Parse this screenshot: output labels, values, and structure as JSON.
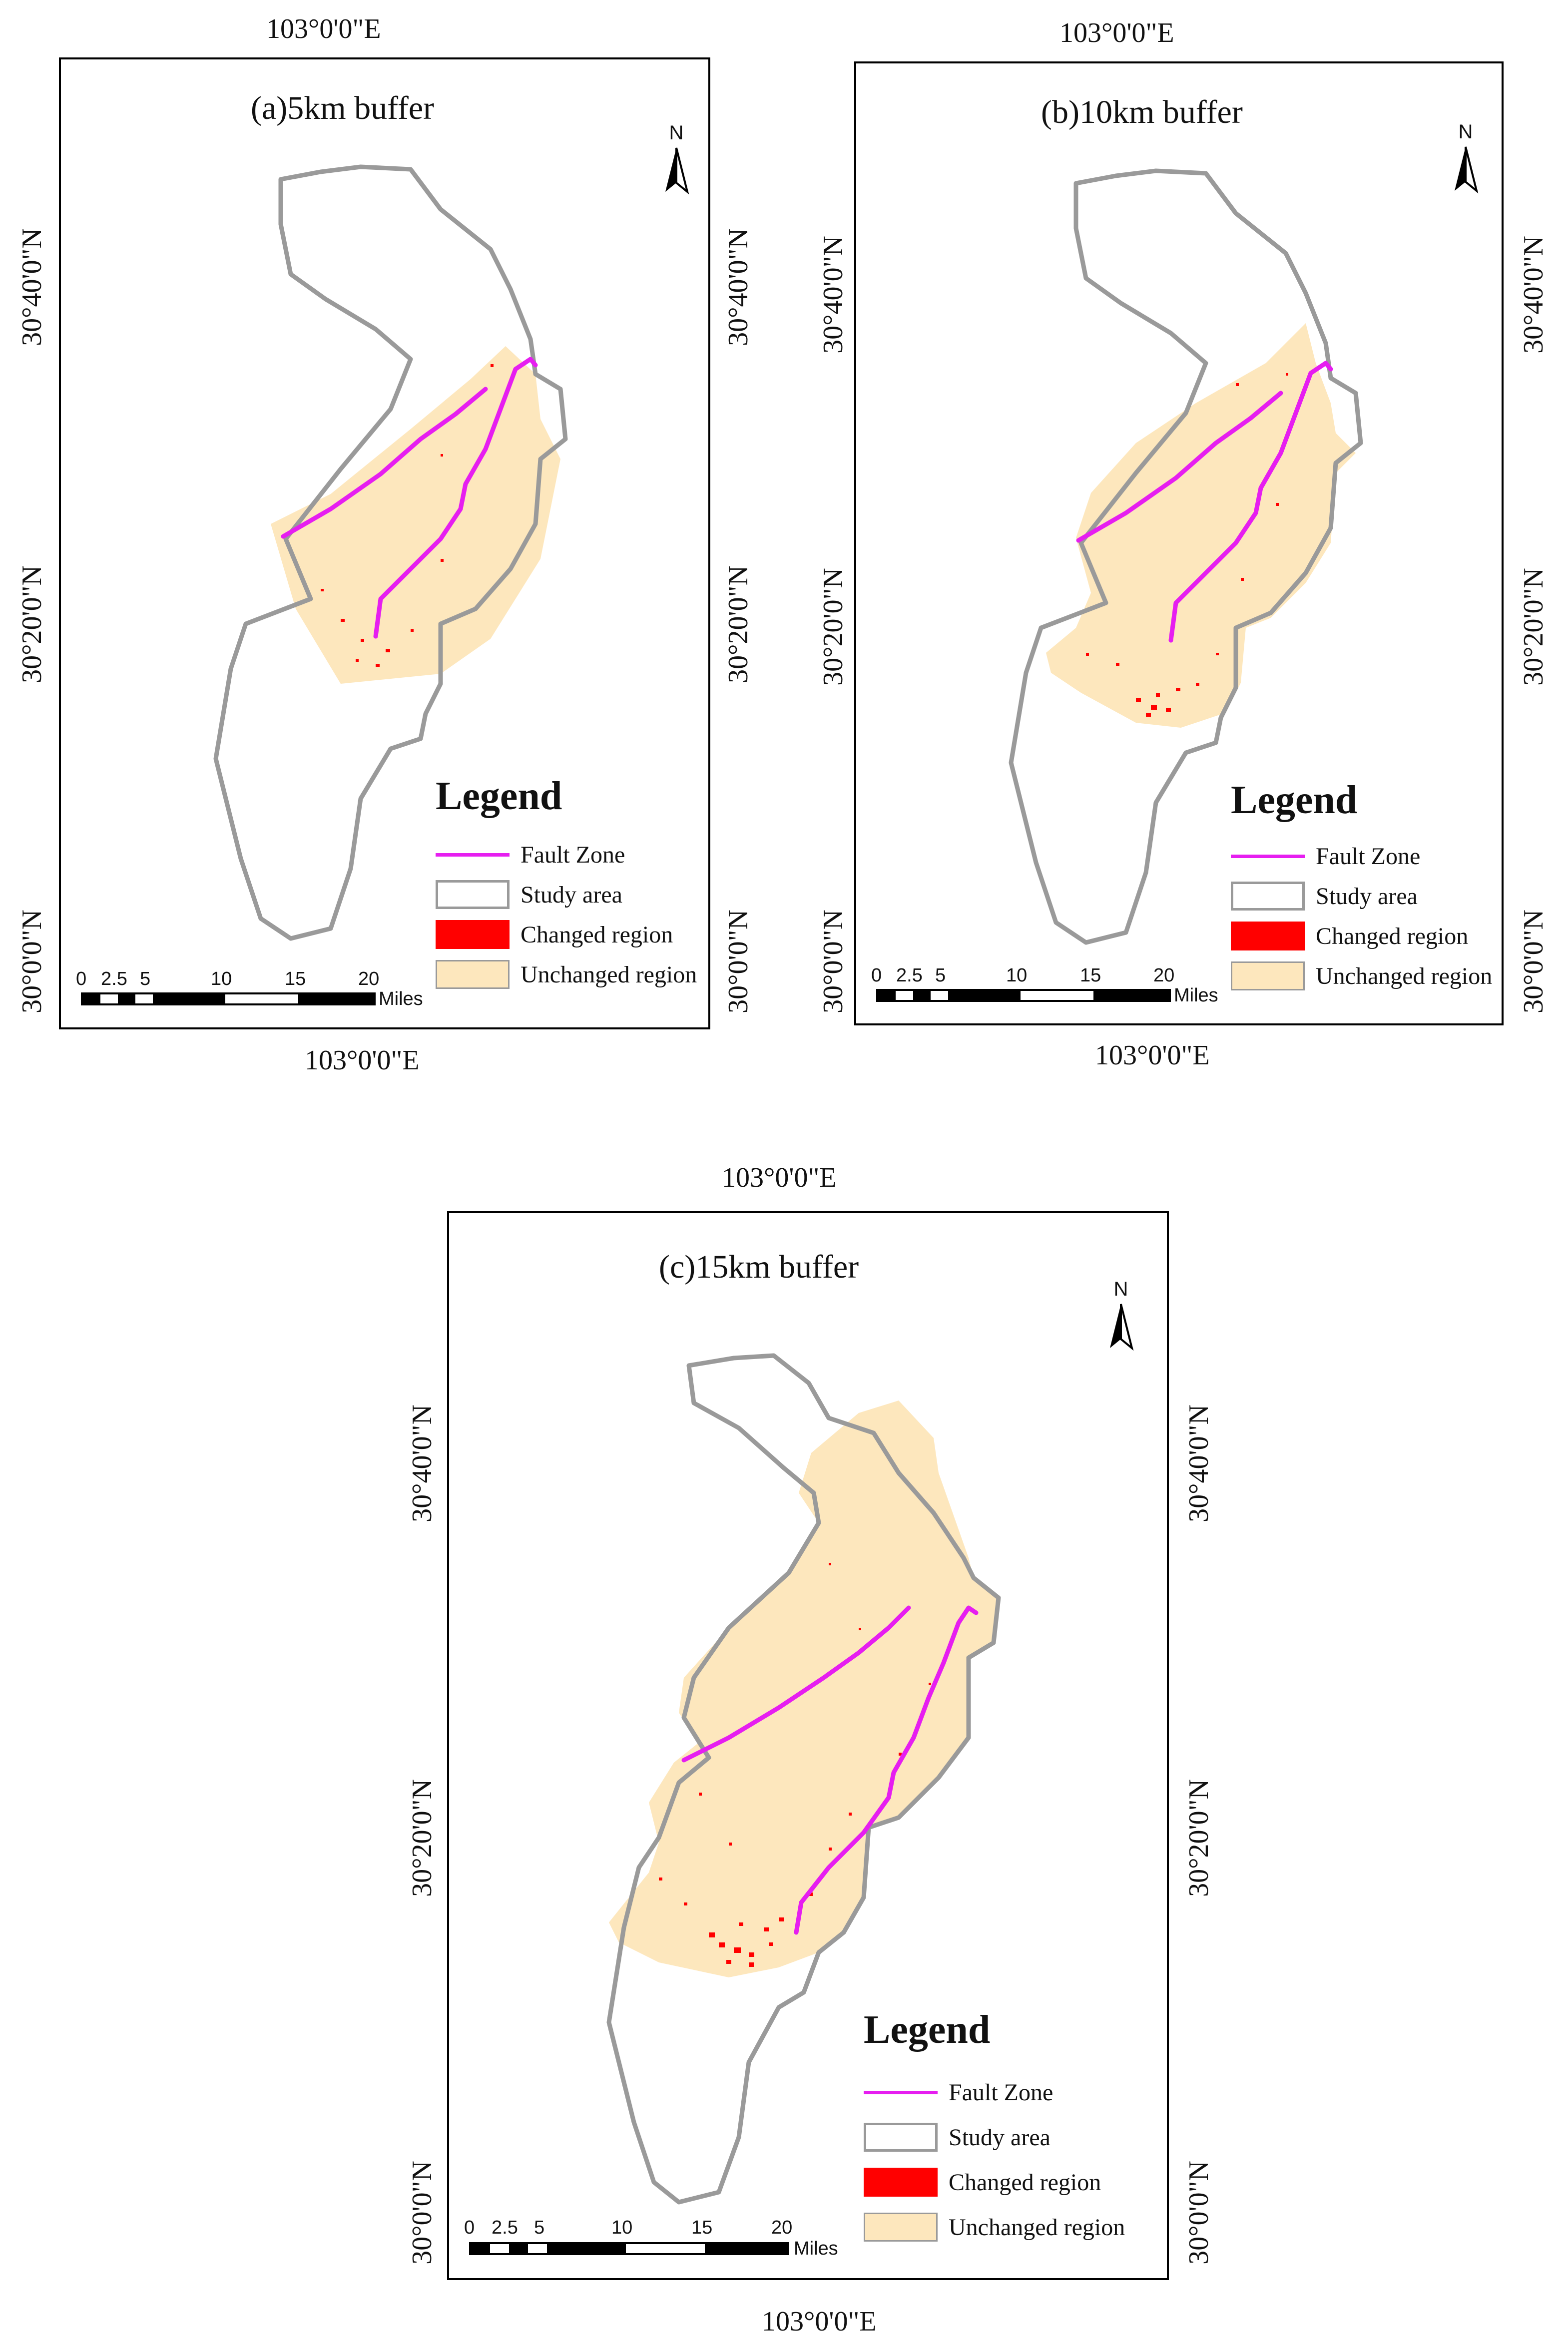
{
  "panels": [
    {
      "id": "a",
      "title": "(a)5km buffer",
      "top_lon": "103°0'0\"E",
      "bottom_lon": "103°0'0\"E",
      "left_lats": [
        "30°40'0\"N",
        "30°20'0\"N",
        "30°0'0\"N"
      ],
      "right_lats": [
        "30°40'0\"N",
        "30°20'0\"N",
        "30°0'0\"N"
      ],
      "north_label": "N",
      "scale": {
        "ticks": [
          "0",
          "2.5",
          "5",
          "10",
          "15",
          "20"
        ],
        "unit": "Miles"
      },
      "legend": {
        "title": "Legend",
        "items": [
          "Fault Zone",
          "Study area",
          "Changed region",
          "Unchanged region"
        ]
      }
    },
    {
      "id": "b",
      "title": "(b)10km buffer",
      "top_lon": "103°0'0\"E",
      "bottom_lon": "103°0'0\"E",
      "left_lats": [
        "30°40'0\"N",
        "30°20'0\"N",
        "30°0'0\"N"
      ],
      "right_lats": [
        "30°40'0\"N",
        "30°20'0\"N",
        "30°0'0\"N"
      ],
      "north_label": "N",
      "scale": {
        "ticks": [
          "0",
          "2.5",
          "5",
          "10",
          "15",
          "20"
        ],
        "unit": "Miles"
      },
      "legend": {
        "title": "Legend",
        "items": [
          "Fault Zone",
          "Study area",
          "Changed region",
          "Unchanged region"
        ]
      }
    },
    {
      "id": "c",
      "title": "(c)15km buffer",
      "top_lon": "103°0'0\"E",
      "bottom_lon": "103°0'0\"E",
      "left_lats": [
        "30°40'0\"N",
        "30°20'0\"N",
        "30°0'0\"N"
      ],
      "right_lats": [
        "30°40'0\"N",
        "30°20'0\"N",
        "30°0'0\"N"
      ],
      "north_label": "N",
      "scale": {
        "ticks": [
          "0",
          "2.5",
          "5",
          "10",
          "15",
          "20"
        ],
        "unit": "Miles"
      },
      "legend": {
        "title": "Legend",
        "items": [
          "Fault Zone",
          "Study area",
          "Changed region",
          "Unchanged region"
        ]
      }
    }
  ],
  "colors": {
    "fault_zone": "#e61ef0",
    "study_area_outline": "#9a9a9a",
    "changed_region": "#ff0000",
    "unchanged_region": "#fde7bd"
  }
}
